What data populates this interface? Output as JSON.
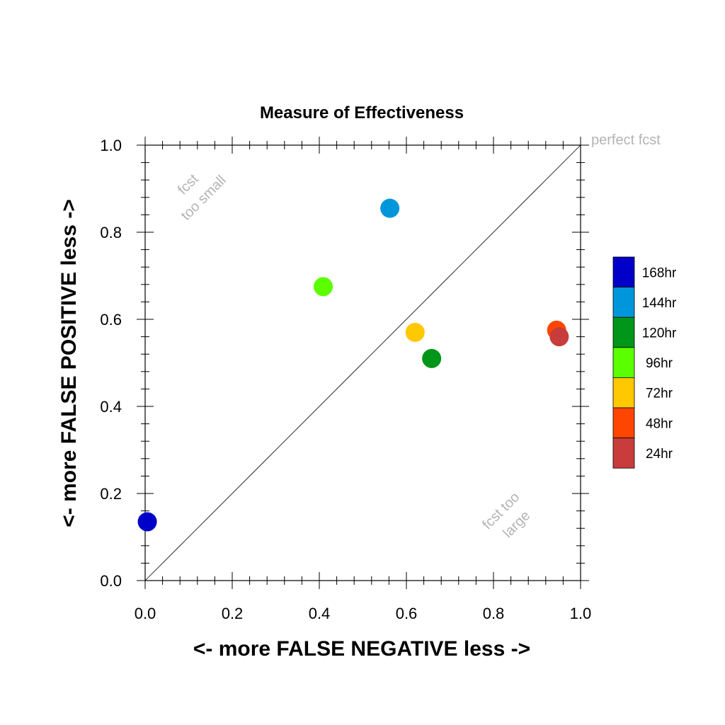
{
  "chart_data": {
    "type": "scatter",
    "title": "Measure of Effectiveness",
    "xlabel": "<- more   FALSE NEGATIVE   less ->",
    "ylabel": "<- more   FALSE POSITIVE   less ->",
    "xlim": [
      0.0,
      1.0
    ],
    "ylim": [
      0.0,
      1.0
    ],
    "x_ticks": [
      "0.0",
      "0.2",
      "0.4",
      "0.6",
      "0.8",
      "1.0"
    ],
    "y_ticks": [
      "0.0",
      "0.2",
      "0.4",
      "0.6",
      "0.8",
      "1.0"
    ],
    "grid": false,
    "diagonal_line": true,
    "annotations": {
      "top_left": [
        "fcst",
        "too small"
      ],
      "bottom_right": [
        "fcst too",
        "large"
      ],
      "top_right": "perfect fcst"
    },
    "legend_position": "right",
    "series": [
      {
        "name": "168hr",
        "color": "#0000c8",
        "x": 0.005,
        "y": 0.135
      },
      {
        "name": "144hr",
        "color": "#0096dc",
        "x": 0.562,
        "y": 0.855
      },
      {
        "name": "120hr",
        "color": "#009619",
        "x": 0.658,
        "y": 0.51
      },
      {
        "name": "96hr",
        "color": "#5aff00",
        "x": 0.409,
        "y": 0.675
      },
      {
        "name": "72hr",
        "color": "#ffc800",
        "x": 0.62,
        "y": 0.57
      },
      {
        "name": "48hr",
        "color": "#ff4600",
        "x": 0.945,
        "y": 0.575
      },
      {
        "name": "24hr",
        "color": "#c83c3c",
        "x": 0.951,
        "y": 0.56
      }
    ],
    "legend_order": [
      "168hr",
      "144hr",
      "120hr",
      "96hr",
      "72hr",
      "48hr",
      "24hr"
    ]
  }
}
